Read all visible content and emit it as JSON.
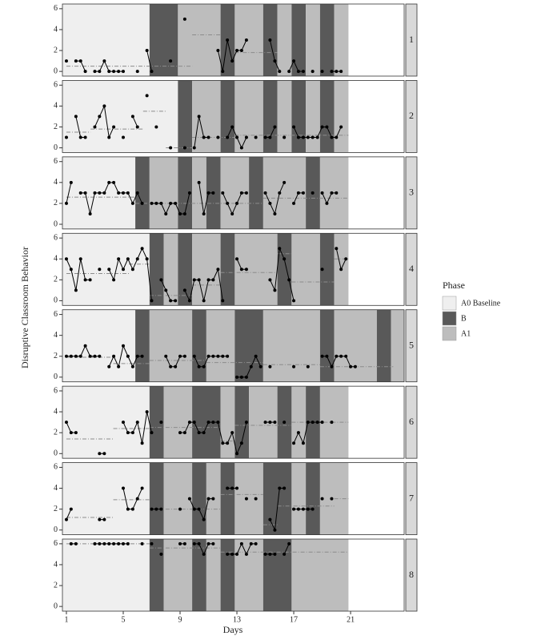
{
  "chart_data": {
    "type": "line",
    "y_label": "Disruptive Classroom Behavior",
    "x_label": "Days",
    "xlim": [
      0.72,
      24.77
    ],
    "xticks": [
      1,
      5,
      9,
      13,
      17,
      21
    ],
    "ylim": [
      -0.45,
      6.45
    ],
    "yticks": [
      0,
      2,
      4,
      6
    ],
    "point_color": "#000000",
    "mean_color": "#8c8c8c",
    "legend": {
      "title": "Phase",
      "entries": [
        {
          "name": "A0 Baseline",
          "color": "#efefef"
        },
        {
          "name": "B",
          "color": "#595959"
        },
        {
          "name": "A1",
          "color": "#bdbdbd"
        }
      ]
    },
    "x": [
      1,
      1.33,
      1.67,
      2,
      2.33,
      2.67,
      3,
      3.33,
      3.67,
      4,
      4.33,
      4.67,
      5,
      5.33,
      5.67,
      6,
      6.33,
      6.67,
      7,
      7.33,
      7.67,
      8,
      8.33,
      8.67,
      9,
      9.33,
      9.67,
      10,
      10.33,
      10.67,
      11,
      11.33,
      11.67,
      12,
      12.33,
      12.67,
      13,
      13.33,
      13.67,
      14,
      14.33,
      14.67,
      15,
      15.33,
      15.67,
      16,
      16.33,
      16.67,
      17,
      17.33,
      17.67,
      18,
      18.33,
      18.67,
      19,
      19.33,
      19.67,
      20,
      20.33,
      20.67,
      21,
      21.33
    ],
    "panels": [
      {
        "label": "1",
        "phases": [
          [
            "A0 Baseline",
            0.72,
            6.85
          ],
          [
            "B",
            6.85,
            8.85
          ],
          [
            "A1",
            8.85,
            11.85
          ],
          [
            "B",
            11.85,
            12.85
          ],
          [
            "A1",
            12.85,
            14.85
          ],
          [
            "B",
            14.85,
            15.85
          ],
          [
            "A1",
            15.85,
            16.85
          ],
          [
            "B",
            16.85,
            17.85
          ],
          [
            "A1",
            17.85,
            18.85
          ],
          [
            "B",
            18.85,
            19.85
          ],
          [
            "A1",
            19.85,
            20.85
          ]
        ],
        "values": [
          1,
          null,
          1,
          1,
          0,
          null,
          0,
          0,
          1,
          0,
          0,
          0,
          0,
          null,
          null,
          0,
          null,
          2,
          0,
          null,
          null,
          null,
          1,
          null,
          null,
          5,
          null,
          null,
          null,
          null,
          null,
          null,
          2,
          0,
          3,
          1,
          2,
          2,
          3,
          null,
          null,
          null,
          null,
          3,
          1,
          0,
          null,
          0,
          1,
          0,
          0,
          null,
          0,
          null,
          0,
          null,
          0,
          0,
          0,
          null,
          null,
          null
        ],
        "means": [
          [
            1,
            9.85,
            0.5
          ],
          [
            9.85,
            11.85,
            3.5
          ],
          [
            12.85,
            15.85,
            1.8
          ]
        ]
      },
      {
        "label": "2",
        "phases": [
          [
            "A0 Baseline",
            0.72,
            8.85
          ],
          [
            "B",
            8.85,
            9.85
          ],
          [
            "A1",
            9.85,
            11.85
          ],
          [
            "B",
            11.85,
            12.85
          ],
          [
            "A1",
            12.85,
            14.85
          ],
          [
            "B",
            14.85,
            15.85
          ],
          [
            "A1",
            15.85,
            16.85
          ],
          [
            "B",
            16.85,
            17.85
          ],
          [
            "A1",
            17.85,
            18.85
          ],
          [
            "B",
            18.85,
            19.85
          ],
          [
            "A1",
            19.85,
            20.85
          ]
        ],
        "values": [
          1,
          null,
          3,
          1,
          1,
          null,
          2,
          3,
          4,
          1,
          2,
          null,
          1,
          null,
          3,
          2,
          null,
          5,
          null,
          2,
          null,
          null,
          0,
          null,
          null,
          0,
          null,
          0,
          3,
          1,
          1,
          null,
          1,
          null,
          1,
          2,
          1,
          0,
          1,
          null,
          1,
          null,
          1,
          1,
          2,
          null,
          1,
          null,
          2,
          1,
          1,
          1,
          1,
          1,
          2,
          2,
          1,
          1,
          2,
          null,
          null,
          null
        ],
        "means": [
          [
            1,
            2.7,
            1.5
          ],
          [
            2.7,
            6.4,
            1.8
          ],
          [
            6.4,
            8,
            3.5
          ],
          [
            8,
            9.85,
            0
          ],
          [
            9.85,
            12.85,
            1
          ],
          [
            12.85,
            20.85,
            1.2
          ]
        ]
      },
      {
        "label": "3",
        "phases": [
          [
            "A0 Baseline",
            0.72,
            5.85
          ],
          [
            "B",
            5.85,
            6.85
          ],
          [
            "A1",
            6.85,
            8.85
          ],
          [
            "B",
            8.85,
            9.85
          ],
          [
            "A1",
            9.85,
            10.85
          ],
          [
            "B",
            10.85,
            11.85
          ],
          [
            "A1",
            11.85,
            13.85
          ],
          [
            "B",
            13.85,
            14.85
          ],
          [
            "A1",
            14.85,
            17.85
          ],
          [
            "B",
            17.85,
            18.85
          ],
          [
            "A1",
            18.85,
            20.85
          ]
        ],
        "values": [
          2,
          4,
          null,
          3,
          3,
          1,
          3,
          3,
          3,
          4,
          4,
          3,
          3,
          3,
          2,
          3,
          2,
          null,
          2,
          2,
          2,
          1,
          2,
          2,
          1,
          1,
          3,
          null,
          4,
          1,
          3,
          3,
          null,
          3,
          2,
          1,
          2,
          3,
          3,
          null,
          null,
          null,
          3,
          2,
          1,
          3,
          4,
          null,
          2,
          3,
          3,
          null,
          3,
          null,
          3,
          2,
          3,
          3,
          null,
          null,
          null,
          null
        ],
        "means": [
          [
            1,
            5.85,
            2.6
          ],
          [
            5.85,
            14.85,
            2
          ],
          [
            14.85,
            20.85,
            2.5
          ]
        ]
      },
      {
        "label": "4",
        "phases": [
          [
            "A0 Baseline",
            0.72,
            6.85
          ],
          [
            "B",
            6.85,
            7.85
          ],
          [
            "A1",
            7.85,
            8.85
          ],
          [
            "B",
            8.85,
            9.85
          ],
          [
            "A1",
            9.85,
            11.85
          ],
          [
            "B",
            11.85,
            12.85
          ],
          [
            "A1",
            12.85,
            15.85
          ],
          [
            "B",
            15.85,
            16.85
          ],
          [
            "A1",
            16.85,
            18.85
          ],
          [
            "B",
            18.85,
            19.85
          ],
          [
            "A1",
            19.85,
            20.85
          ]
        ],
        "values": [
          4,
          3,
          1,
          4,
          2,
          2,
          null,
          3,
          null,
          3,
          2,
          4,
          3,
          4,
          3,
          4,
          5,
          4,
          0,
          null,
          2,
          1,
          0,
          0,
          null,
          1,
          0,
          2,
          2,
          0,
          2,
          2,
          3,
          0,
          null,
          null,
          4,
          3,
          3,
          null,
          null,
          null,
          null,
          2,
          1,
          5,
          4,
          2,
          0,
          null,
          null,
          null,
          null,
          null,
          3,
          null,
          null,
          5,
          3,
          4,
          null,
          null
        ],
        "means": [
          [
            1,
            5.4,
            2.6
          ],
          [
            5.4,
            6.85,
            3.5
          ],
          [
            6.85,
            9.85,
            0.5
          ],
          [
            9.85,
            11.85,
            1.5
          ],
          [
            11.85,
            15.85,
            2.7
          ],
          [
            15.85,
            16.85,
            4.5
          ],
          [
            16.85,
            19.85,
            1.8
          ],
          [
            19.85,
            20.85,
            4
          ]
        ]
      },
      {
        "label": "5",
        "phases": [
          [
            "A0 Baseline",
            0.72,
            5.85
          ],
          [
            "B",
            5.85,
            6.85
          ],
          [
            "A1",
            6.85,
            9.85
          ],
          [
            "B",
            9.85,
            10.85
          ],
          [
            "A1",
            10.85,
            12.85
          ],
          [
            "B",
            12.85,
            14.85
          ],
          [
            "A1",
            14.85,
            18.85
          ],
          [
            "B",
            18.85,
            19.85
          ],
          [
            "A1",
            19.85,
            22.85
          ],
          [
            "B",
            22.85,
            23.85
          ],
          [
            "A1",
            23.85,
            24.77
          ]
        ],
        "values": [
          2,
          2,
          2,
          2,
          3,
          2,
          2,
          2,
          null,
          1,
          2,
          1,
          3,
          2,
          1,
          2,
          2,
          null,
          null,
          null,
          null,
          2,
          1,
          1,
          2,
          2,
          null,
          2,
          1,
          1,
          2,
          2,
          2,
          2,
          2,
          null,
          0,
          0,
          0,
          1,
          2,
          1,
          null,
          1,
          null,
          null,
          null,
          null,
          1,
          null,
          null,
          1,
          null,
          null,
          2,
          2,
          1,
          2,
          2,
          2,
          1,
          1
        ],
        "means": [
          [
            1,
            4.3,
            1.9
          ],
          [
            4.3,
            6.85,
            1.3
          ],
          [
            6.85,
            10.85,
            1.6
          ],
          [
            10.85,
            14.85,
            1.4
          ],
          [
            14.85,
            18.85,
            1.2
          ],
          [
            18.85,
            24,
            1
          ]
        ]
      },
      {
        "label": "6",
        "phases": [
          [
            "A0 Baseline",
            0.72,
            6.85
          ],
          [
            "B",
            6.85,
            7.85
          ],
          [
            "A1",
            7.85,
            9.85
          ],
          [
            "B",
            9.85,
            11.85
          ],
          [
            "A1",
            11.85,
            12.85
          ],
          [
            "B",
            12.85,
            13.85
          ],
          [
            "A1",
            13.85,
            15.85
          ],
          [
            "B",
            15.85,
            16.85
          ],
          [
            "A1",
            16.85,
            17.85
          ],
          [
            "B",
            17.85,
            18.85
          ],
          [
            "A1",
            18.85,
            20.85
          ]
        ],
        "values": [
          3,
          2,
          2,
          null,
          null,
          null,
          null,
          0,
          0,
          null,
          null,
          null,
          3,
          2,
          2,
          3,
          1,
          4,
          2,
          null,
          3,
          null,
          null,
          null,
          2,
          2,
          3,
          3,
          2,
          2,
          3,
          3,
          3,
          1,
          1,
          2,
          0,
          1,
          3,
          null,
          null,
          null,
          3,
          3,
          3,
          null,
          3,
          null,
          1,
          2,
          1,
          3,
          3,
          3,
          3,
          null,
          3,
          null,
          null,
          null,
          null,
          null
        ],
        "means": [
          [
            1,
            4.3,
            1.4
          ],
          [
            4.3,
            6.85,
            2.4
          ],
          [
            6.85,
            11.85,
            2.5
          ],
          [
            11.85,
            12.85,
            1.2
          ],
          [
            12.85,
            16.85,
            2.7
          ],
          [
            16.85,
            20.85,
            3
          ]
        ]
      },
      {
        "label": "7",
        "phases": [
          [
            "A0 Baseline",
            0.72,
            6.85
          ],
          [
            "B",
            6.85,
            7.85
          ],
          [
            "A1",
            7.85,
            9.85
          ],
          [
            "B",
            9.85,
            10.85
          ],
          [
            "A1",
            10.85,
            11.85
          ],
          [
            "B",
            11.85,
            12.85
          ],
          [
            "A1",
            12.85,
            14.85
          ],
          [
            "B",
            14.85,
            16.85
          ],
          [
            "A1",
            16.85,
            17.85
          ],
          [
            "B",
            17.85,
            18.85
          ],
          [
            "A1",
            18.85,
            20.85
          ]
        ],
        "values": [
          1,
          2,
          null,
          null,
          null,
          null,
          null,
          1,
          1,
          null,
          null,
          null,
          4,
          2,
          2,
          3,
          4,
          null,
          2,
          2,
          2,
          null,
          null,
          null,
          2,
          null,
          3,
          2,
          2,
          1,
          3,
          3,
          null,
          null,
          4,
          4,
          4,
          null,
          3,
          null,
          3,
          null,
          null,
          1,
          0,
          4,
          4,
          null,
          2,
          2,
          2,
          2,
          2,
          null,
          3,
          null,
          3,
          null,
          null,
          null,
          null,
          null
        ],
        "means": [
          [
            1,
            4.3,
            1.2
          ],
          [
            4.3,
            6.85,
            2.9
          ],
          [
            6.85,
            11.85,
            2
          ],
          [
            11.85,
            14.85,
            3.4
          ],
          [
            14.85,
            15.85,
            0.5
          ],
          [
            15.85,
            19.85,
            2.3
          ],
          [
            19.85,
            20.85,
            3
          ]
        ]
      },
      {
        "label": "8",
        "phases": [
          [
            "A0 Baseline",
            0.72,
            6.85
          ],
          [
            "B",
            6.85,
            7.85
          ],
          [
            "A1",
            7.85,
            9.85
          ],
          [
            "B",
            9.85,
            10.85
          ],
          [
            "A1",
            10.85,
            11.85
          ],
          [
            "B",
            11.85,
            12.85
          ],
          [
            "A1",
            12.85,
            14.85
          ],
          [
            "B",
            14.85,
            16.85
          ],
          [
            "A1",
            16.85,
            20.85
          ]
        ],
        "values": [
          null,
          6,
          6,
          null,
          null,
          null,
          6,
          6,
          6,
          6,
          6,
          6,
          6,
          6,
          null,
          null,
          6,
          null,
          6,
          null,
          5,
          null,
          null,
          null,
          6,
          6,
          null,
          6,
          6,
          5,
          6,
          6,
          null,
          null,
          5,
          5,
          5,
          6,
          5,
          6,
          6,
          null,
          5,
          5,
          5,
          null,
          5,
          6,
          null,
          null,
          null,
          null,
          null,
          null,
          null,
          null,
          null,
          null,
          null,
          null,
          null,
          null
        ],
        "means": [
          [
            1,
            6.85,
            6
          ],
          [
            6.85,
            11.85,
            5.6
          ],
          [
            11.85,
            20.85,
            5.2
          ]
        ]
      }
    ]
  }
}
